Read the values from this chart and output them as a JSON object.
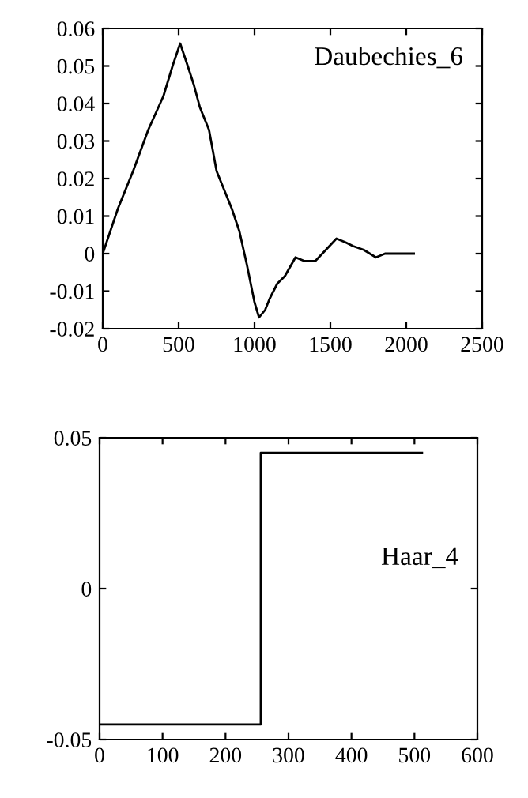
{
  "chart_data": [
    {
      "type": "line",
      "annotations": [
        "Daubechies_6"
      ],
      "xlim": [
        0,
        2500
      ],
      "xticks": [
        0,
        500,
        1000,
        1500,
        2000,
        2500
      ],
      "ylim": [
        -0.02,
        0.06
      ],
      "yticks": [
        -0.02,
        -0.01,
        0,
        0.01,
        0.02,
        0.03,
        0.04,
        0.05,
        0.06
      ],
      "grid": false,
      "legend": false,
      "series": [
        {
          "color": "#000000",
          "x": [
            0,
            100,
            200,
            300,
            400,
            460,
            510,
            560,
            600,
            640,
            700,
            750,
            800,
            850,
            900,
            950,
            1000,
            1030,
            1070,
            1100,
            1150,
            1200,
            1270,
            1330,
            1400,
            1470,
            1540,
            1600,
            1650,
            1720,
            1800,
            1860,
            1920,
            1960,
            2050
          ],
          "values": [
            0,
            0.012,
            0.022,
            0.033,
            0.042,
            0.05,
            0.056,
            0.05,
            0.045,
            0.039,
            0.033,
            0.022,
            0.017,
            0.012,
            0.006,
            -0.003,
            -0.013,
            -0.017,
            -0.015,
            -0.012,
            -0.008,
            -0.006,
            -0.001,
            -0.002,
            -0.002,
            0.001,
            0.004,
            0.003,
            0.002,
            0.001,
            -0.001,
            0,
            0,
            0,
            0
          ]
        }
      ]
    },
    {
      "type": "step",
      "annotations": [
        "Haar_4"
      ],
      "xlim": [
        0,
        600
      ],
      "xticks": [
        0,
        100,
        200,
        300,
        400,
        500,
        600
      ],
      "ylim": [
        -0.05,
        0.05
      ],
      "yticks": [
        -0.05,
        0,
        0.05
      ],
      "grid": false,
      "legend": false,
      "series": [
        {
          "color": "#000000",
          "x": [
            0,
            256,
            512
          ],
          "values": [
            -0.045,
            0.045,
            0.045
          ]
        }
      ]
    }
  ]
}
